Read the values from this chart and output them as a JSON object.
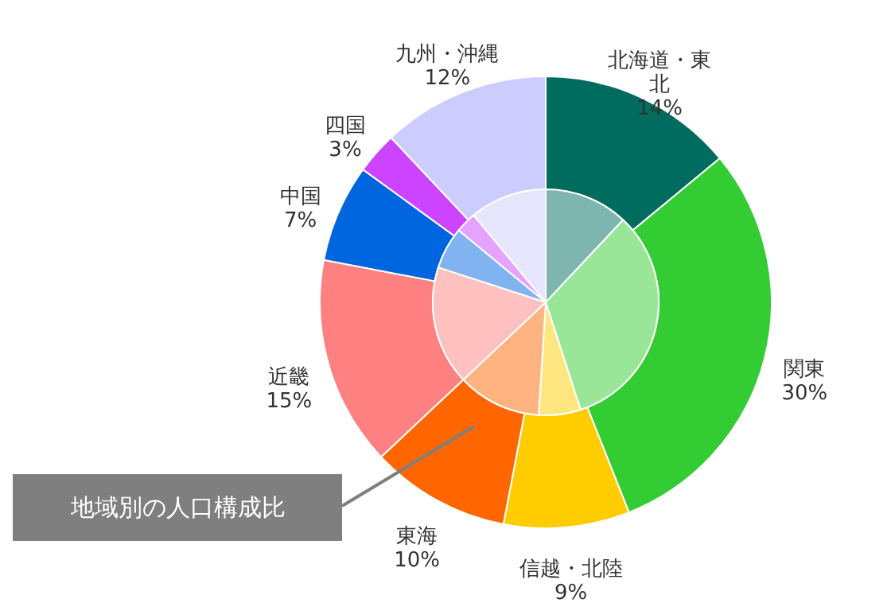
{
  "chart_data": {
    "type": "donut",
    "categories": [
      "北海道・東北",
      "関東",
      "信越・北陸",
      "東海",
      "近畿",
      "中国",
      "四国",
      "九州・沖縄"
    ],
    "series": [
      {
        "values": [
          14,
          30,
          9,
          10,
          15,
          7,
          3,
          12
        ],
        "colors": [
          "#006b5f",
          "#33cc33",
          "#ffcc00",
          "#ff6600",
          "#ff8080",
          "#0066e0",
          "#cc44ff",
          "#ccccff"
        ],
        "value_labels": [
          "14%",
          "30%",
          "9%",
          "10%",
          "15%",
          "7%",
          "3%",
          "12%"
        ]
      },
      {
        "type": "pie",
        "values": [
          12,
          33,
          6,
          12,
          17,
          6,
          3,
          11
        ],
        "colors": [
          "#7fb5af",
          "#99e699",
          "#ffe680",
          "#ffb380",
          "#ffc0c0",
          "#80b3f0",
          "#e6a2ff",
          "#e6e6ff"
        ]
      }
    ],
    "annotations": [
      "地域別の人口構成比"
    ]
  }
}
